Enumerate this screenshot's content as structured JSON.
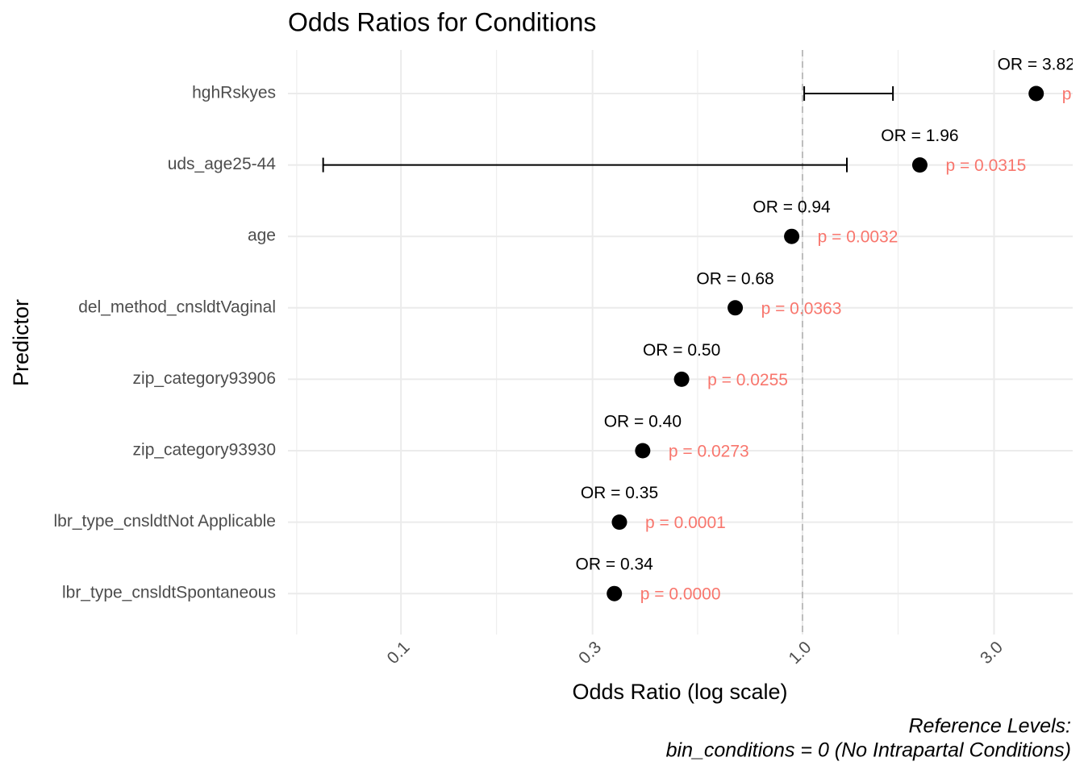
{
  "chart_data": {
    "type": "forest",
    "title": "Odds Ratios for Conditions",
    "x_label": "Odds Ratio (log scale)",
    "y_label": "Predictor",
    "caption": [
      "Reference Levels:",
      "bin_conditions = 0 (No Intrapartal Conditions)"
    ],
    "categories": [
      "hghRskyes",
      "uds_age25-44",
      "age",
      "del_method_cnsldtVaginal",
      "zip_category93906",
      "zip_category93930",
      "lbr_type_cnsldtNot Applicable",
      "lbr_type_cnsldtSpontaneous"
    ],
    "values": [
      3.82,
      1.96,
      0.94,
      0.68,
      0.5,
      0.4,
      0.35,
      0.34
    ],
    "value_labels": [
      "OR = 3.82",
      "OR = 1.96",
      "OR = 0.94",
      "OR = 0.68",
      "OR = 0.50",
      "OR = 0.40",
      "OR = 0.35",
      "OR = 0.34"
    ],
    "p_labels": [
      "p",
      "p = 0.0315",
      "p = 0.0032",
      "p = 0.0363",
      "p = 0.0255",
      "p = 0.0273",
      "p = 0.0001",
      "p = 0.0000"
    ],
    "ci_lower": [
      1.01,
      0.064,
      null,
      null,
      null,
      null,
      null,
      null
    ],
    "ci_upper": [
      1.68,
      1.29,
      null,
      null,
      null,
      null,
      null,
      null
    ],
    "color": "#000000",
    "p_color": "#F8766D",
    "xscale": "log",
    "xlim": [
      0.0523,
      4.71
    ],
    "xticks": [
      0.1,
      0.3,
      {
        "value": 1,
        "label": "1.0"
      },
      {
        "value": 3,
        "label": "3.0"
      }
    ],
    "xminorticks": [
      0.055,
      0.173,
      0.548,
      1.73
    ],
    "reference_line": 1,
    "grid": true
  }
}
